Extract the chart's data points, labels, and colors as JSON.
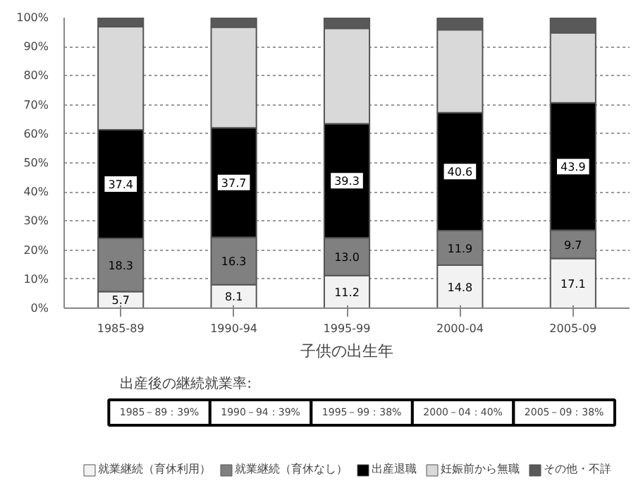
{
  "chart_data": {
    "type": "bar",
    "stacked": true,
    "xlabel": "子供の出生年",
    "categories": [
      "1985-89",
      "1990-94",
      "1995-99",
      "2000-04",
      "2005-09"
    ],
    "series": [
      {
        "name": "就業継続（育休利用）",
        "color": "#f2f2f2",
        "values": [
          5.7,
          8.1,
          11.2,
          14.8,
          17.1
        ],
        "value_labels": [
          "5.7",
          "8.1",
          "11.2",
          "14.8",
          "17.1"
        ]
      },
      {
        "name": "就業継続（育休なし）",
        "color": "#808080",
        "values": [
          18.3,
          16.3,
          13.0,
          11.9,
          9.7
        ],
        "value_labels": [
          "18.3",
          "16.3",
          "13.0",
          "11.9",
          "9.7"
        ]
      },
      {
        "name": "出産退職",
        "color": "#000000",
        "values": [
          37.4,
          37.7,
          39.3,
          40.6,
          43.9
        ],
        "value_labels": [
          "37.4",
          "37.7",
          "39.3",
          "40.6",
          "43.9"
        ]
      },
      {
        "name": "妊娠前から無職",
        "color": "#d9d9d9",
        "values": [
          35.5,
          34.6,
          32.8,
          28.5,
          24.1
        ]
      },
      {
        "name": "その他・不詳",
        "color": "#595959",
        "values": [
          3.1,
          3.3,
          3.7,
          4.2,
          5.2
        ]
      }
    ],
    "ylim": [
      0,
      100
    ],
    "yticks": [
      {
        "value": 0,
        "label": "0%"
      },
      {
        "value": 10,
        "label": "10%"
      },
      {
        "value": 20,
        "label": "20%"
      },
      {
        "value": 30,
        "label": "30%"
      },
      {
        "value": 40,
        "label": "40%"
      },
      {
        "value": 50,
        "label": "50%"
      },
      {
        "value": 60,
        "label": "60%"
      },
      {
        "value": 70,
        "label": "70%"
      },
      {
        "value": 80,
        "label": "80%"
      },
      {
        "value": 90,
        "label": "90%"
      },
      {
        "value": 100,
        "label": "100%"
      }
    ],
    "grid": "y",
    "legend": "bottom",
    "annotations": [
      "出産後の継続就業率:",
      "1985－89：39%",
      "1990－94：39%",
      "1995－99：38%",
      "2000－04：40%",
      "2005－09：38%"
    ]
  }
}
